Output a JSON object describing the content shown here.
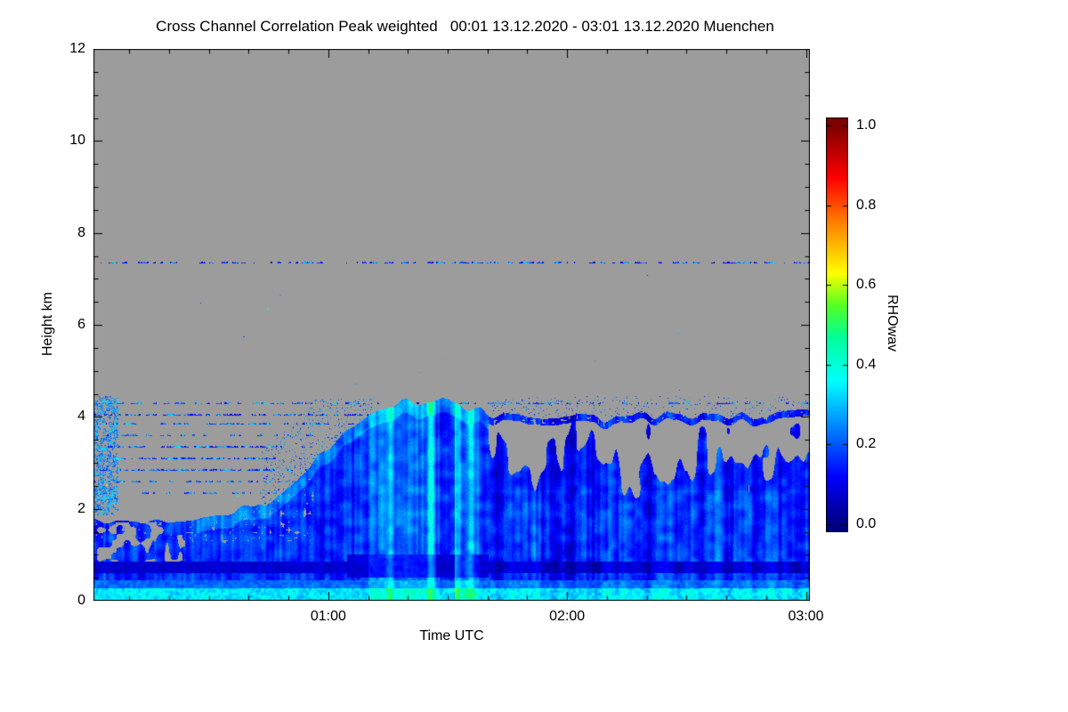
{
  "figure": {
    "background": "#ffffff"
  },
  "chart_data": {
    "type": "heatmap",
    "title": "Cross Channel Correlation Peak weighted   00:01 13.12.2020 - 03:01 13.12.2020 Muenchen",
    "xlabel": "Time UTC",
    "ylabel": "Height km",
    "colorbar_label": "RHOwav",
    "x_range_hours": [
      0.016667,
      3.016667
    ],
    "x_major_ticks": [
      {
        "hour": 1,
        "label": "01:00"
      },
      {
        "hour": 2,
        "label": "02:00"
      },
      {
        "hour": 3,
        "label": "03:00"
      }
    ],
    "x_minor_step_minutes": 10,
    "y_range_km": [
      0,
      12
    ],
    "y_major_ticks": [
      {
        "km": 0,
        "label": "0"
      },
      {
        "km": 2,
        "label": "2"
      },
      {
        "km": 4,
        "label": "4"
      },
      {
        "km": 6,
        "label": "6"
      },
      {
        "km": 8,
        "label": "8"
      },
      {
        "km": 10,
        "label": "10"
      },
      {
        "km": 12,
        "label": "12"
      }
    ],
    "y_minor_step_km": 0.5,
    "value_range": [
      0.0,
      1.0
    ],
    "colorbar_ticks": [
      {
        "value": 1.0,
        "label": "1.0"
      },
      {
        "value": 0.8,
        "label": "0.8"
      },
      {
        "value": 0.6,
        "label": "0.6"
      },
      {
        "value": 0.4,
        "label": "0.4"
      },
      {
        "value": 0.2,
        "label": "0.2"
      },
      {
        "value": 0.0,
        "label": "0.0"
      }
    ],
    "nodata_color": "#9c9c9c",
    "colormap_stops": [
      [
        0.0,
        "#000082"
      ],
      [
        0.12,
        "#0000ff"
      ],
      [
        0.36,
        "#00ffff"
      ],
      [
        0.47,
        "#00ff99"
      ],
      [
        0.55,
        "#55ff22"
      ],
      [
        0.63,
        "#ffff00"
      ],
      [
        0.75,
        "#ff8800"
      ],
      [
        0.87,
        "#ff0000"
      ],
      [
        1.0,
        "#7f0000"
      ]
    ],
    "field_description": {
      "boundary_profile_hour_km": [
        [
          0.02,
          1.75
        ],
        [
          0.35,
          1.8
        ],
        [
          0.55,
          1.85
        ],
        [
          0.68,
          2.0
        ],
        [
          0.8,
          2.35
        ],
        [
          0.92,
          2.85
        ],
        [
          1.0,
          3.3
        ],
        [
          1.08,
          3.75
        ],
        [
          1.17,
          4.15
        ],
        [
          1.3,
          4.3
        ],
        [
          1.5,
          4.3
        ],
        [
          1.6,
          4.2
        ],
        [
          1.67,
          4.05
        ],
        [
          2.0,
          3.98
        ],
        [
          2.5,
          4.02
        ],
        [
          3.02,
          4.1
        ]
      ],
      "surface_layer_top_km": 0.28,
      "dark_band_km": [
        0.6,
        0.85
      ],
      "elevated_speckle_line_km": 7.35,
      "speckle_rows": [
        {
          "km": 2.35,
          "t0": 0.02,
          "t1": 1.1,
          "density": 0.4
        },
        {
          "km": 2.6,
          "t0": 0.02,
          "t1": 1.15,
          "density": 0.42
        },
        {
          "km": 2.85,
          "t0": 0.02,
          "t1": 1.12,
          "density": 0.45
        },
        {
          "km": 3.1,
          "t0": 0.02,
          "t1": 1.1,
          "density": 0.45
        },
        {
          "km": 3.35,
          "t0": 0.02,
          "t1": 1.05,
          "density": 0.4
        },
        {
          "km": 3.6,
          "t0": 0.02,
          "t1": 1.1,
          "density": 0.4
        },
        {
          "km": 3.85,
          "t0": 0.02,
          "t1": 1.18,
          "density": 0.45
        },
        {
          "km": 4.05,
          "t0": 0.02,
          "t1": 1.25,
          "density": 0.55
        },
        {
          "km": 4.3,
          "t0": 0.02,
          "t1": 3.02,
          "density": 0.45
        },
        {
          "km": 7.35,
          "t0": 0.02,
          "t1": 3.02,
          "density": 0.5
        }
      ],
      "bright_column_zones_hours": [
        [
          1.17,
          1.45
        ],
        [
          1.53,
          1.63
        ]
      ],
      "virga_start_hour": 1.67,
      "virga_base_km": 2.3,
      "typical_values": [
        0.05,
        0.45
      ]
    }
  }
}
